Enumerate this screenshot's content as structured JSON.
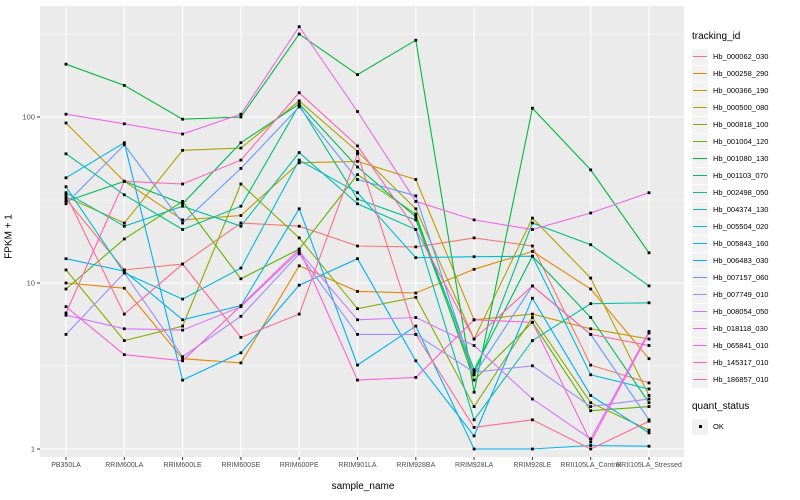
{
  "chart_data": {
    "type": "line",
    "xlabel": "sample_name",
    "ylabel": "FPKM + 1",
    "y_scale": "log10",
    "y_ticks": [
      1,
      10,
      100
    ],
    "ylim": [
      0.9,
      480
    ],
    "grid": true,
    "legend_position": "right",
    "point_shape": "filled-square",
    "point_color": "#000000",
    "panel_bg": "#ebebeb",
    "grid_color": "#ffffff",
    "tick_color": "#333333",
    "categories": [
      "PB350LA",
      "RRIM600LA",
      "RRIM600LE",
      "RRIM600SE",
      "RRIM600PE",
      "RRIM901LA",
      "RRIM928BA",
      "RRIM928LA",
      "RRIM928LE",
      "RRII105LA_Control",
      "RRII105LA_Stressed"
    ],
    "legend": {
      "series_title": "tracking_id",
      "quant_title": "quant_status",
      "quant_label": "OK"
    },
    "series": [
      {
        "name": "Hb_000062_030",
        "color": "#F8766D",
        "values": [
          32,
          12,
          13,
          23,
          22,
          16.7,
          16.5,
          18.7,
          16.7,
          3.2,
          2.5
        ]
      },
      {
        "name": "Hb_000258_290",
        "color": "#E58700",
        "values": [
          10,
          9.3,
          3.5,
          3.3,
          12.7,
          8.9,
          8.7,
          12.1,
          15.5,
          9.2,
          3.5
        ]
      },
      {
        "name": "Hb_000366_190",
        "color": "#C99800",
        "values": [
          92,
          41,
          24,
          25.5,
          53,
          54,
          42,
          6,
          6.5,
          5.3,
          4.6
        ]
      },
      {
        "name": "Hb_000500_080",
        "color": "#AEA200",
        "values": [
          33,
          23,
          63,
          65,
          125,
          62,
          28,
          4.6,
          24.6,
          10.7,
          2.1
        ]
      },
      {
        "name": "Hb_000818_100",
        "color": "#89AC00",
        "values": [
          12,
          4.5,
          5.5,
          39.5,
          18.7,
          7,
          8.2,
          1.8,
          6.2,
          1.9,
          1.3
        ]
      },
      {
        "name": "Hb_001004_120",
        "color": "#5EB300",
        "values": [
          9.2,
          18.4,
          31,
          10.6,
          16,
          45,
          26,
          2.6,
          5.8,
          1.7,
          1.8
        ]
      },
      {
        "name": "Hb_001080_130",
        "color": "#00BA38",
        "values": [
          208,
          155,
          97,
          100,
          316,
          180,
          290,
          2.2,
          113,
          48,
          15.2
        ]
      },
      {
        "name": "Hb_001103_070",
        "color": "#00BD5C",
        "values": [
          31,
          41,
          30,
          70,
          120,
          50,
          25,
          3,
          14.5,
          6.2,
          1.9
        ]
      },
      {
        "name": "Hb_002498_050",
        "color": "#00C084",
        "values": [
          60,
          34,
          21,
          29,
          118,
          32,
          24,
          2.8,
          23,
          17,
          9.6
        ]
      },
      {
        "name": "Hb_004374_130",
        "color": "#00C0A7",
        "values": [
          35,
          22,
          29,
          22,
          61,
          30,
          21,
          1.5,
          4.5,
          7.5,
          7.6
        ]
      },
      {
        "name": "Hb_005504_020",
        "color": "#00BCD8",
        "values": [
          38,
          11.5,
          8,
          12.3,
          55,
          35,
          14.2,
          14.4,
          14.5,
          2.8,
          2.3
        ]
      },
      {
        "name": "Hb_005843_160",
        "color": "#00B3F2",
        "values": [
          14,
          11.8,
          6,
          7.3,
          28,
          3.2,
          5.5,
          1,
          1,
          1.05,
          1.04
        ]
      },
      {
        "name": "Hb_006483_030",
        "color": "#00B0F6",
        "values": [
          43,
          70,
          2.6,
          3.8,
          9.7,
          14,
          3.4,
          1.2,
          8.1,
          2.1,
          1.25
        ]
      },
      {
        "name": "Hb_007157_060",
        "color": "#619CFF",
        "values": [
          30,
          68,
          23,
          49,
          115,
          42,
          33.5,
          2.8,
          9.6,
          4.9,
          1.5
        ]
      },
      {
        "name": "Hb_007749_010",
        "color": "#9F8CFF",
        "values": [
          4.9,
          11.5,
          3.6,
          6.3,
          15,
          4.9,
          4.9,
          2.9,
          3.17,
          1.8,
          2
        ]
      },
      {
        "name": "Hb_008054_050",
        "color": "#D575FE",
        "values": [
          6.4,
          5.3,
          5.2,
          7.2,
          15.5,
          6,
          6.2,
          4.2,
          2,
          1.15,
          5.1
        ]
      },
      {
        "name": "Hb_018118_030",
        "color": "#EF67EB",
        "values": [
          104,
          91,
          79,
          104,
          350,
          108,
          31,
          24,
          21,
          26.4,
          35
        ]
      },
      {
        "name": "Hb_065841_010",
        "color": "#FC61D5",
        "values": [
          7.2,
          3.7,
          3.4,
          7.3,
          16,
          2.6,
          2.7,
          6,
          5.8,
          1.1,
          5
        ]
      },
      {
        "name": "Hb_145317_010",
        "color": "#FF62B6",
        "values": [
          6.6,
          41,
          39.5,
          55,
          140,
          67,
          21,
          4.6,
          9.6,
          4.9,
          4.2
        ]
      },
      {
        "name": "Hb_186857_010",
        "color": "#FF6C91",
        "values": [
          34,
          6.5,
          13,
          4.7,
          6.5,
          60,
          4.9,
          1.35,
          1.5,
          1,
          1.47
        ]
      }
    ]
  },
  "layout_note": ""
}
